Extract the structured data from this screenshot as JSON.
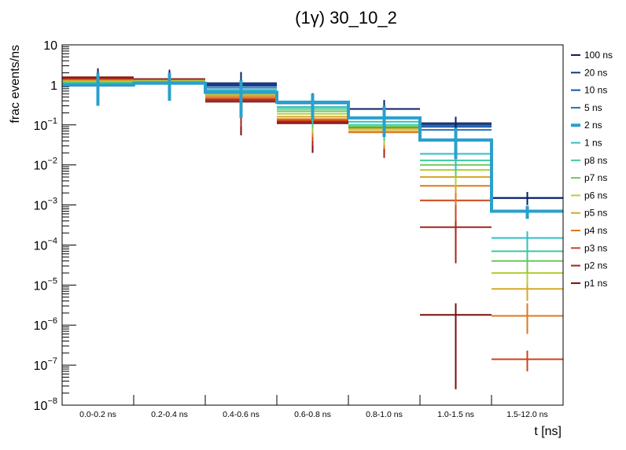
{
  "chart_data": {
    "type": "step-histogram",
    "title": "(1γ) 30_10_2",
    "xlabel": "t [ns]",
    "ylabel": "frac events/ns",
    "yscale": "log",
    "ylim": [
      1e-08,
      10
    ],
    "y_tick_labels": [
      {
        "base": "10",
        "exp": "",
        "value": 10
      },
      {
        "base": "1",
        "exp": "",
        "value": 1
      },
      {
        "base": "10",
        "exp": "−1",
        "value": 0.1
      },
      {
        "base": "10",
        "exp": "−2",
        "value": 0.01
      },
      {
        "base": "10",
        "exp": "−3",
        "value": 0.001
      },
      {
        "base": "10",
        "exp": "−4",
        "value": 0.0001
      },
      {
        "base": "10",
        "exp": "−5",
        "value": 1e-05
      },
      {
        "base": "10",
        "exp": "−6",
        "value": 1e-06
      },
      {
        "base": "10",
        "exp": "−7",
        "value": 1e-07
      },
      {
        "base": "10",
        "exp": "−8",
        "value": 1e-08
      }
    ],
    "categories": [
      "0.0-0.2 ns",
      "0.2-0.4 ns",
      "0.4-0.6 ns",
      "0.6-0.8 ns",
      "0.8-1.0 ns",
      "1.0-1.5 ns",
      "1.5-12.0 ns"
    ],
    "series": [
      {
        "name": "100 ns",
        "color": "#0b1f63",
        "width": 2,
        "values": [
          0.95,
          1.1,
          1.1,
          0.35,
          0.25,
          0.11,
          0.0015
        ],
        "err_hi": [
          2.5,
          2.3,
          2.1,
          0.62,
          0.42,
          0.16,
          0.0021
        ],
        "err_lo": [
          0.38,
          0.45,
          0.45,
          0.14,
          0.1,
          0.065,
          0.001
        ]
      },
      {
        "name": "20 ns",
        "color": "#0c3a86",
        "width": 2,
        "values": [
          0.98,
          1.1,
          1.0,
          0.35,
          0.25,
          0.1,
          0.0015
        ],
        "err_hi": [
          2.4,
          2.2,
          1.9,
          0.6,
          0.4,
          0.15,
          0.0021
        ],
        "err_lo": [
          0.38,
          0.45,
          0.42,
          0.14,
          0.1,
          0.06,
          0.001
        ]
      },
      {
        "name": "10 ns",
        "color": "#13559f",
        "width": 2,
        "values": [
          1.0,
          1.1,
          0.95,
          0.35,
          0.25,
          0.09,
          0.0015
        ],
        "err_hi": [
          2.3,
          2.2,
          1.8,
          0.6,
          0.4,
          0.14,
          0.0021
        ],
        "err_lo": [
          0.4,
          0.45,
          0.38,
          0.14,
          0.1,
          0.055,
          0.001
        ]
      },
      {
        "name": "5 ns",
        "color": "#1f72b8",
        "width": 2,
        "values": [
          1.0,
          1.1,
          0.85,
          0.35,
          0.25,
          0.075,
          0.0015
        ],
        "err_hi": [
          2.3,
          2.2,
          1.6,
          0.6,
          0.4,
          0.12,
          0.0021
        ],
        "err_lo": [
          0.4,
          0.45,
          0.35,
          0.14,
          0.1,
          0.045,
          0.001
        ]
      },
      {
        "name": "2 ns",
        "color": "#2aa0cc",
        "width": 4,
        "values": [
          1.0,
          1.1,
          0.65,
          0.37,
          0.15,
          0.042,
          0.0007
        ],
        "err_hi": [
          2.0,
          2.0,
          1.3,
          0.6,
          0.3,
          0.085,
          0.00095
        ],
        "err_lo": [
          0.3,
          0.4,
          0.15,
          0.14,
          0.05,
          0.014,
          0.00045
        ]
      },
      {
        "name": "1 ns",
        "color": "#2fbfc4",
        "width": 2,
        "values": [
          1.05,
          1.1,
          0.75,
          0.28,
          0.12,
          0.019,
          0.00015
        ],
        "err_hi": [
          2.2,
          2.1,
          1.4,
          0.5,
          0.25,
          0.04,
          0.00022
        ],
        "err_lo": [
          0.4,
          0.4,
          0.3,
          0.1,
          0.05,
          0.008,
          8e-05
        ]
      },
      {
        "name": "p8 ns",
        "color": "#3ec8a0",
        "width": 2,
        "values": [
          1.1,
          1.2,
          0.7,
          0.25,
          0.1,
          0.013,
          7e-05
        ],
        "err_hi": [
          2.2,
          2.2,
          1.3,
          0.45,
          0.2,
          0.025,
          0.0001
        ],
        "err_lo": [
          0.4,
          0.45,
          0.3,
          0.1,
          0.04,
          0.006,
          4e-05
        ]
      },
      {
        "name": "p7 ns",
        "color": "#6cc85a",
        "width": 2,
        "values": [
          1.15,
          1.2,
          0.65,
          0.22,
          0.09,
          0.01,
          4e-05
        ],
        "err_hi": [
          2.2,
          2.2,
          1.2,
          0.4,
          0.18,
          0.02,
          6e-05
        ],
        "err_lo": [
          0.4,
          0.45,
          0.25,
          0.08,
          0.04,
          0.005,
          2e-05
        ]
      },
      {
        "name": "p6 ns",
        "color": "#b5cf38",
        "width": 2,
        "values": [
          1.2,
          1.25,
          0.6,
          0.19,
          0.08,
          0.0075,
          2e-05
        ],
        "err_hi": [
          2.3,
          2.2,
          1.1,
          0.35,
          0.15,
          0.015,
          3e-05
        ],
        "err_lo": [
          0.45,
          0.45,
          0.22,
          0.07,
          0.035,
          0.003,
          1e-05
        ]
      },
      {
        "name": "p5 ns",
        "color": "#d5a82a",
        "width": 2,
        "values": [
          1.25,
          1.25,
          0.55,
          0.16,
          0.07,
          0.005,
          8e-06
        ],
        "err_hi": [
          2.3,
          2.2,
          1.0,
          0.3,
          0.13,
          0.01,
          1.3e-05
        ],
        "err_lo": [
          0.45,
          0.45,
          0.2,
          0.06,
          0.03,
          0.002,
          4e-06
        ]
      },
      {
        "name": "p4 ns",
        "color": "#dc7a1e",
        "width": 2,
        "values": [
          1.3,
          1.3,
          0.5,
          0.14,
          0.065,
          0.003,
          1.7e-06
        ],
        "err_hi": [
          2.4,
          2.3,
          0.9,
          0.25,
          0.12,
          0.006,
          3.5e-06
        ],
        "err_lo": [
          0.5,
          0.5,
          0.18,
          0.05,
          0.025,
          0.001,
          6e-07
        ]
      },
      {
        "name": "p3 ns",
        "color": "#cc4418",
        "width": 2,
        "values": [
          1.35,
          1.3,
          0.45,
          0.13,
          0.08,
          0.0013,
          1.4e-07
        ],
        "err_hi": [
          2.4,
          2.3,
          0.85,
          0.22,
          0.14,
          0.0028,
          2.3e-07
        ],
        "err_lo": [
          0.5,
          0.5,
          0.15,
          0.04,
          0.03,
          0.0004,
          7e-08
        ]
      },
      {
        "name": "p2 ns",
        "color": "#a42418",
        "width": 2,
        "values": [
          1.45,
          1.35,
          0.42,
          0.12,
          0.085,
          0.00028,
          null
        ],
        "err_hi": [
          2.5,
          2.4,
          0.8,
          0.2,
          0.15,
          0.00075,
          null
        ],
        "err_lo": [
          0.5,
          0.5,
          0.09,
          0.03,
          0.015,
          3.5e-05,
          null
        ]
      },
      {
        "name": "p1 ns",
        "color": "#7a0c0c",
        "width": 2,
        "values": [
          1.55,
          1.4,
          0.38,
          0.11,
          0.09,
          1.8e-06,
          null
        ],
        "err_hi": [
          2.6,
          2.4,
          0.7,
          0.19,
          0.16,
          3.5e-06,
          null
        ],
        "err_lo": [
          0.55,
          0.55,
          0.055,
          0.02,
          0.02,
          2.5e-08,
          null
        ]
      }
    ]
  }
}
